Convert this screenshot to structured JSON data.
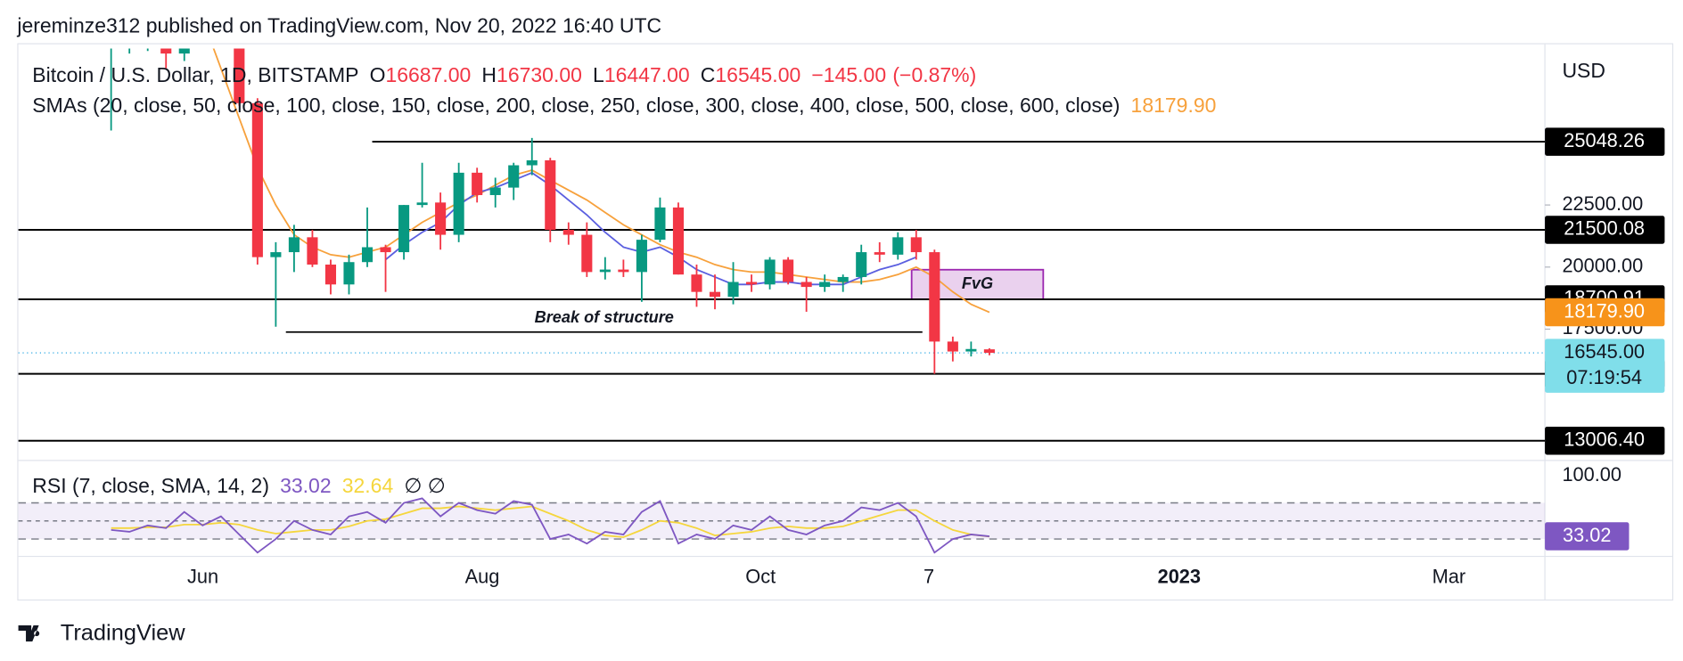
{
  "header": {
    "byline": "jereminze312 published on TradingView.com, Nov 20, 2022 16:40 UTC",
    "symbol": "Bitcoin / U.S. Dollar, 1D, BITSTAMP",
    "ohlc": [
      {
        "key": "O",
        "value": 16687,
        "label": "16687.00"
      },
      {
        "key": "H",
        "value": 16730,
        "label": "16730.00"
      },
      {
        "key": "L",
        "value": 16447,
        "label": "16447.00"
      },
      {
        "key": "C",
        "value": 16545,
        "label": "16545.00"
      }
    ],
    "change": {
      "value": -145,
      "label": "−145.00"
    },
    "change_pct": {
      "value": -0.87,
      "label": "(−0.87%)"
    }
  },
  "chart_data": {
    "type": "candlestick",
    "currency": "USD",
    "ylim": [
      12300,
      28800
    ],
    "yticks": [
      {
        "value": 22500,
        "label": "22500.00"
      },
      {
        "value": 20000,
        "label": "20000.00"
      },
      {
        "value": 17500,
        "label": "17500.00"
      }
    ],
    "xticks": [
      "Jun",
      "Aug",
      "Oct",
      "7",
      "2023",
      "Mar"
    ],
    "up_color": "#089981",
    "down_color": "#f23645",
    "candles": {
      "open": [
        28900,
        29000,
        29200,
        29600,
        28600,
        31700,
        29800,
        30100,
        26600,
        20400,
        20600,
        21200,
        20100,
        19300,
        20200,
        20800,
        20600,
        22500,
        22600,
        21300,
        23800,
        22900,
        23200,
        24100,
        24300,
        21500,
        21300,
        19800,
        19900,
        19800,
        21100,
        22400,
        19700,
        19000,
        18800,
        19400,
        19300,
        20300,
        19400,
        19200,
        19400,
        19600,
        20600,
        20500,
        21200,
        20600,
        17000,
        16600,
        16687
      ],
      "high": [
        30200,
        30600,
        30200,
        30000,
        31900,
        31800,
        31600,
        30300,
        26800,
        21000,
        21700,
        21500,
        20300,
        20500,
        22400,
        20900,
        22500,
        24200,
        23000,
        24200,
        24000,
        23600,
        24200,
        25200,
        24400,
        21800,
        21800,
        20400,
        20300,
        21300,
        22800,
        22600,
        20100,
        19700,
        20200,
        19700,
        20400,
        20400,
        19600,
        19700,
        19700,
        20900,
        21000,
        21400,
        21500,
        20700,
        17200,
        17000,
        16730
      ],
      "low": [
        25500,
        28600,
        28700,
        28000,
        28300,
        29300,
        29400,
        26500,
        20100,
        17600,
        19800,
        20000,
        18900,
        18900,
        20000,
        19000,
        20300,
        22400,
        20700,
        21000,
        22600,
        22400,
        22700,
        23700,
        21000,
        20900,
        19600,
        19500,
        19600,
        18600,
        21000,
        19700,
        18400,
        18300,
        18500,
        19000,
        19100,
        19300,
        18200,
        19000,
        19000,
        19300,
        20200,
        20300,
        20300,
        15700,
        16200,
        16400,
        16447
      ],
      "close": [
        29000,
        29200,
        29600,
        28600,
        31700,
        29800,
        30100,
        26600,
        20400,
        20600,
        21200,
        20100,
        19300,
        20200,
        20800,
        20600,
        22500,
        22600,
        21300,
        23800,
        22900,
        23200,
        24100,
        24300,
        21500,
        21300,
        19800,
        19900,
        19800,
        21100,
        22400,
        19700,
        19000,
        18800,
        19400,
        19300,
        20300,
        19400,
        19200,
        19400,
        19600,
        20600,
        20500,
        21200,
        20600,
        17000,
        16600,
        16700,
        16545
      ]
    },
    "sma": {
      "legend": "SMAs (20, close, 50, close, 100, close, 150, close, 200, close, 250, close, 300, close, 400, close, 500, close, 600, close)",
      "value": {
        "value": 18179.9,
        "label": "18179.90"
      },
      "series": [
        {
          "color": "#f7a13c",
          "values": [
            null,
            null,
            null,
            null,
            null,
            30000,
            28000,
            26000,
            24000,
            22500,
            21300,
            20800,
            20500,
            20400,
            20600,
            20800,
            21300,
            21800,
            22200,
            22600,
            22900,
            23300,
            23700,
            23900,
            23500,
            23100,
            22700,
            22200,
            21700,
            21300,
            20900,
            20600,
            20400,
            20100,
            19900,
            19800,
            19800,
            19700,
            19600,
            19500,
            19400,
            19400,
            19500,
            19700,
            20000,
            19600,
            19000,
            18500,
            18179.9
          ]
        },
        {
          "color": "#5b5fe0",
          "values": [
            null,
            null,
            null,
            null,
            null,
            null,
            null,
            null,
            null,
            null,
            null,
            null,
            null,
            null,
            null,
            20300,
            20900,
            21400,
            21800,
            22500,
            23000,
            23200,
            23500,
            23800,
            23300,
            22700,
            22100,
            21400,
            20800,
            20600,
            20800,
            20400,
            19900,
            19600,
            19300,
            19300,
            19400,
            19400,
            19300,
            19300,
            19300,
            19600,
            19900,
            20100,
            20400,
            null,
            null,
            null,
            null
          ]
        }
      ]
    },
    "levels": [
      {
        "value": 25048.26
      },
      {
        "value": 21500.08
      },
      {
        "value": 18700.91
      },
      {
        "value": 15700.35
      },
      {
        "value": 13006.4,
        "label": "13006.40"
      }
    ],
    "break_of_structure": {
      "text": "Break of structure",
      "value": 17382
    },
    "fvg": {
      "text": "FvG",
      "range": [
        18700,
        19894
      ]
    },
    "last_price": {
      "value": 16545,
      "label": "16545.00",
      "countdown": "07:19:54"
    }
  },
  "rsi": {
    "type": "line",
    "legend": "RSI (7, close, SMA, 14, 2)",
    "value": 33.02,
    "sma_value": 32.64,
    "na": "∅ ∅",
    "ylim": [
      12,
      111
    ],
    "yticks": [
      {
        "value": 100,
        "label": "100.00"
      }
    ],
    "levels": [
      70,
      50,
      30
    ],
    "series": [
      {
        "color": "#7e57c2",
        "values": [
          40,
          38,
          45,
          42,
          60,
          45,
          55,
          35,
          15,
          30,
          50,
          40,
          35,
          55,
          60,
          48,
          70,
          75,
          55,
          70,
          62,
          58,
          72,
          68,
          30,
          35,
          25,
          38,
          35,
          60,
          72,
          25,
          35,
          30,
          45,
          40,
          55,
          40,
          35,
          45,
          50,
          65,
          62,
          70,
          55,
          15,
          30,
          35,
          33.02
        ]
      },
      {
        "color": "#f5d63d",
        "values": [
          42,
          42,
          43,
          43,
          46,
          46,
          48,
          46,
          40,
          36,
          38,
          40,
          40,
          44,
          50,
          52,
          58,
          64,
          64,
          66,
          64,
          62,
          64,
          66,
          58,
          50,
          40,
          34,
          32,
          40,
          50,
          48,
          42,
          34,
          36,
          38,
          42,
          44,
          42,
          42,
          44,
          50,
          56,
          62,
          62,
          50,
          40,
          35,
          32.64
        ]
      }
    ]
  },
  "footer": {
    "brand": "TradingView"
  }
}
